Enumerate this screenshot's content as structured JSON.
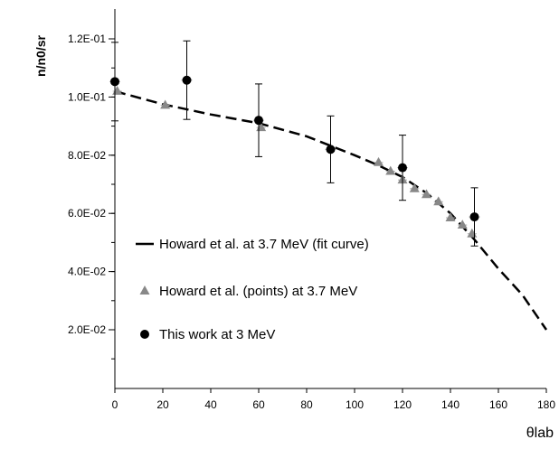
{
  "chart_data": {
    "type": "scatter",
    "xlabel": "θlab",
    "ylabel": "n/n0/sr",
    "xlim": [
      0,
      180
    ],
    "ylim": [
      0.0,
      0.13
    ],
    "x_ticks": [
      0,
      20,
      40,
      60,
      80,
      100,
      120,
      140,
      160,
      180
    ],
    "x_tick_labels": [
      "0",
      "20",
      "40",
      "60",
      "80",
      "100",
      "120",
      "140",
      "160",
      "180"
    ],
    "y_ticks": [
      0.02,
      0.04,
      0.06,
      0.08,
      0.1,
      0.12
    ],
    "y_tick_labels": [
      "2.0E-02",
      "4.0E-02",
      "6.0E-02",
      "8.0E-02",
      "1.0E-01",
      "1.2E-01"
    ],
    "grid": false,
    "legend_position": "bottom-left",
    "series": [
      {
        "name": "Howard et al. at 3.7 MeV (fit curve)",
        "kind": "line",
        "style": "dashed",
        "color": "#000000",
        "x": [
          0,
          20,
          40,
          60,
          80,
          100,
          110,
          120,
          130,
          140,
          150,
          160,
          170,
          180
        ],
        "y": [
          0.102,
          0.0975,
          0.094,
          0.091,
          0.0865,
          0.08,
          0.0765,
          0.0725,
          0.067,
          0.06,
          0.051,
          0.041,
          0.032,
          0.02
        ]
      },
      {
        "name": "Howard et al. (points) at 3.7 MeV",
        "kind": "scatter",
        "marker": "triangle",
        "color": "#888888",
        "x": [
          1,
          21,
          61,
          110,
          115,
          120,
          125,
          130,
          135,
          140,
          145,
          149
        ],
        "y": [
          0.102,
          0.0972,
          0.0895,
          0.0775,
          0.0745,
          0.0715,
          0.0685,
          0.0665,
          0.064,
          0.0585,
          0.056,
          0.053
        ]
      },
      {
        "name": "This work at 3 MeV",
        "kind": "scatter",
        "marker": "circle",
        "color": "#000000",
        "x": [
          0,
          30,
          60,
          90,
          120,
          150
        ],
        "y": [
          0.1053,
          0.1058,
          0.092,
          0.082,
          0.0757,
          0.0588
        ],
        "y_err": [
          0.0135,
          0.0135,
          0.0125,
          0.0115,
          0.0112,
          0.01
        ]
      }
    ]
  }
}
